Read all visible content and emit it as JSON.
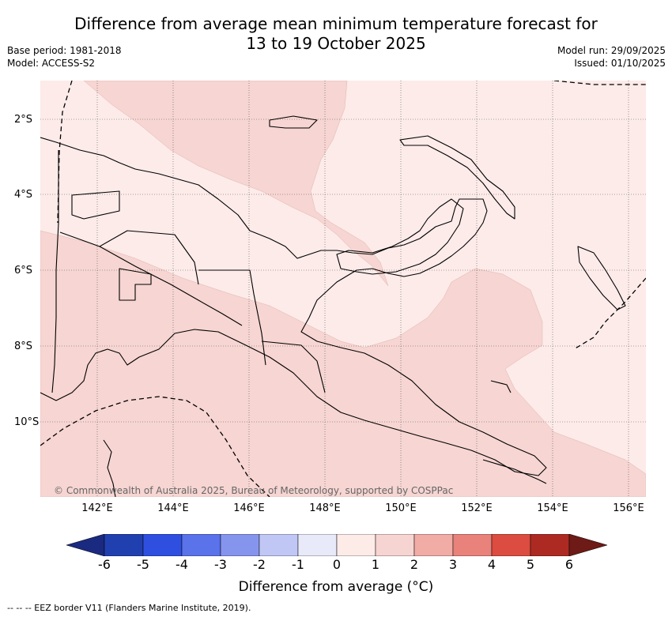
{
  "title_line1": "Difference from average mean minimum temperature forecast for",
  "title_line2": "13 to 19 October 2025",
  "base_period": "Base period: 1981-2018",
  "model": "Model: ACCESS-S2",
  "model_run": "Model run: 29/09/2025",
  "issued": "Issued: 01/10/2025",
  "lat_labels": [
    "2°S",
    "4°S",
    "6°S",
    "8°S",
    "10°S"
  ],
  "lon_labels": [
    "142°E",
    "144°E",
    "146°E",
    "148°E",
    "150°E",
    "152°E",
    "154°E",
    "156°E"
  ],
  "colorbar_ticks": [
    "-6",
    "-5",
    "-4",
    "-3",
    "-2",
    "-1",
    "0",
    "1",
    "2",
    "3",
    "4",
    "5",
    "6"
  ],
  "colorbar_colors": [
    "#2140b0",
    "#2f4fe0",
    "#5a72ea",
    "#8595ee",
    "#c0c7f5",
    "#e8eaf9",
    "#fdebe8",
    "#f6d4d1",
    "#f0aca5",
    "#e8827a",
    "#dc4c40",
    "#ad2a22"
  ],
  "colorbar_low_extend": "#1a2a80",
  "colorbar_high_extend": "#6e1a16",
  "colorbar_title": "Difference from average (°C)",
  "footer": "--  --  -- EEZ border V11 (Flanders Marine Institute, 2019).",
  "copyright": "© Commonwealth of Australia 2025, Bureau of Meteorology, supported by COSPPac",
  "colors": {
    "light_anomaly": "#fcebe9",
    "medium_anomaly": "#f6d5d2",
    "land_line": "#000000",
    "grid": "#555555"
  }
}
